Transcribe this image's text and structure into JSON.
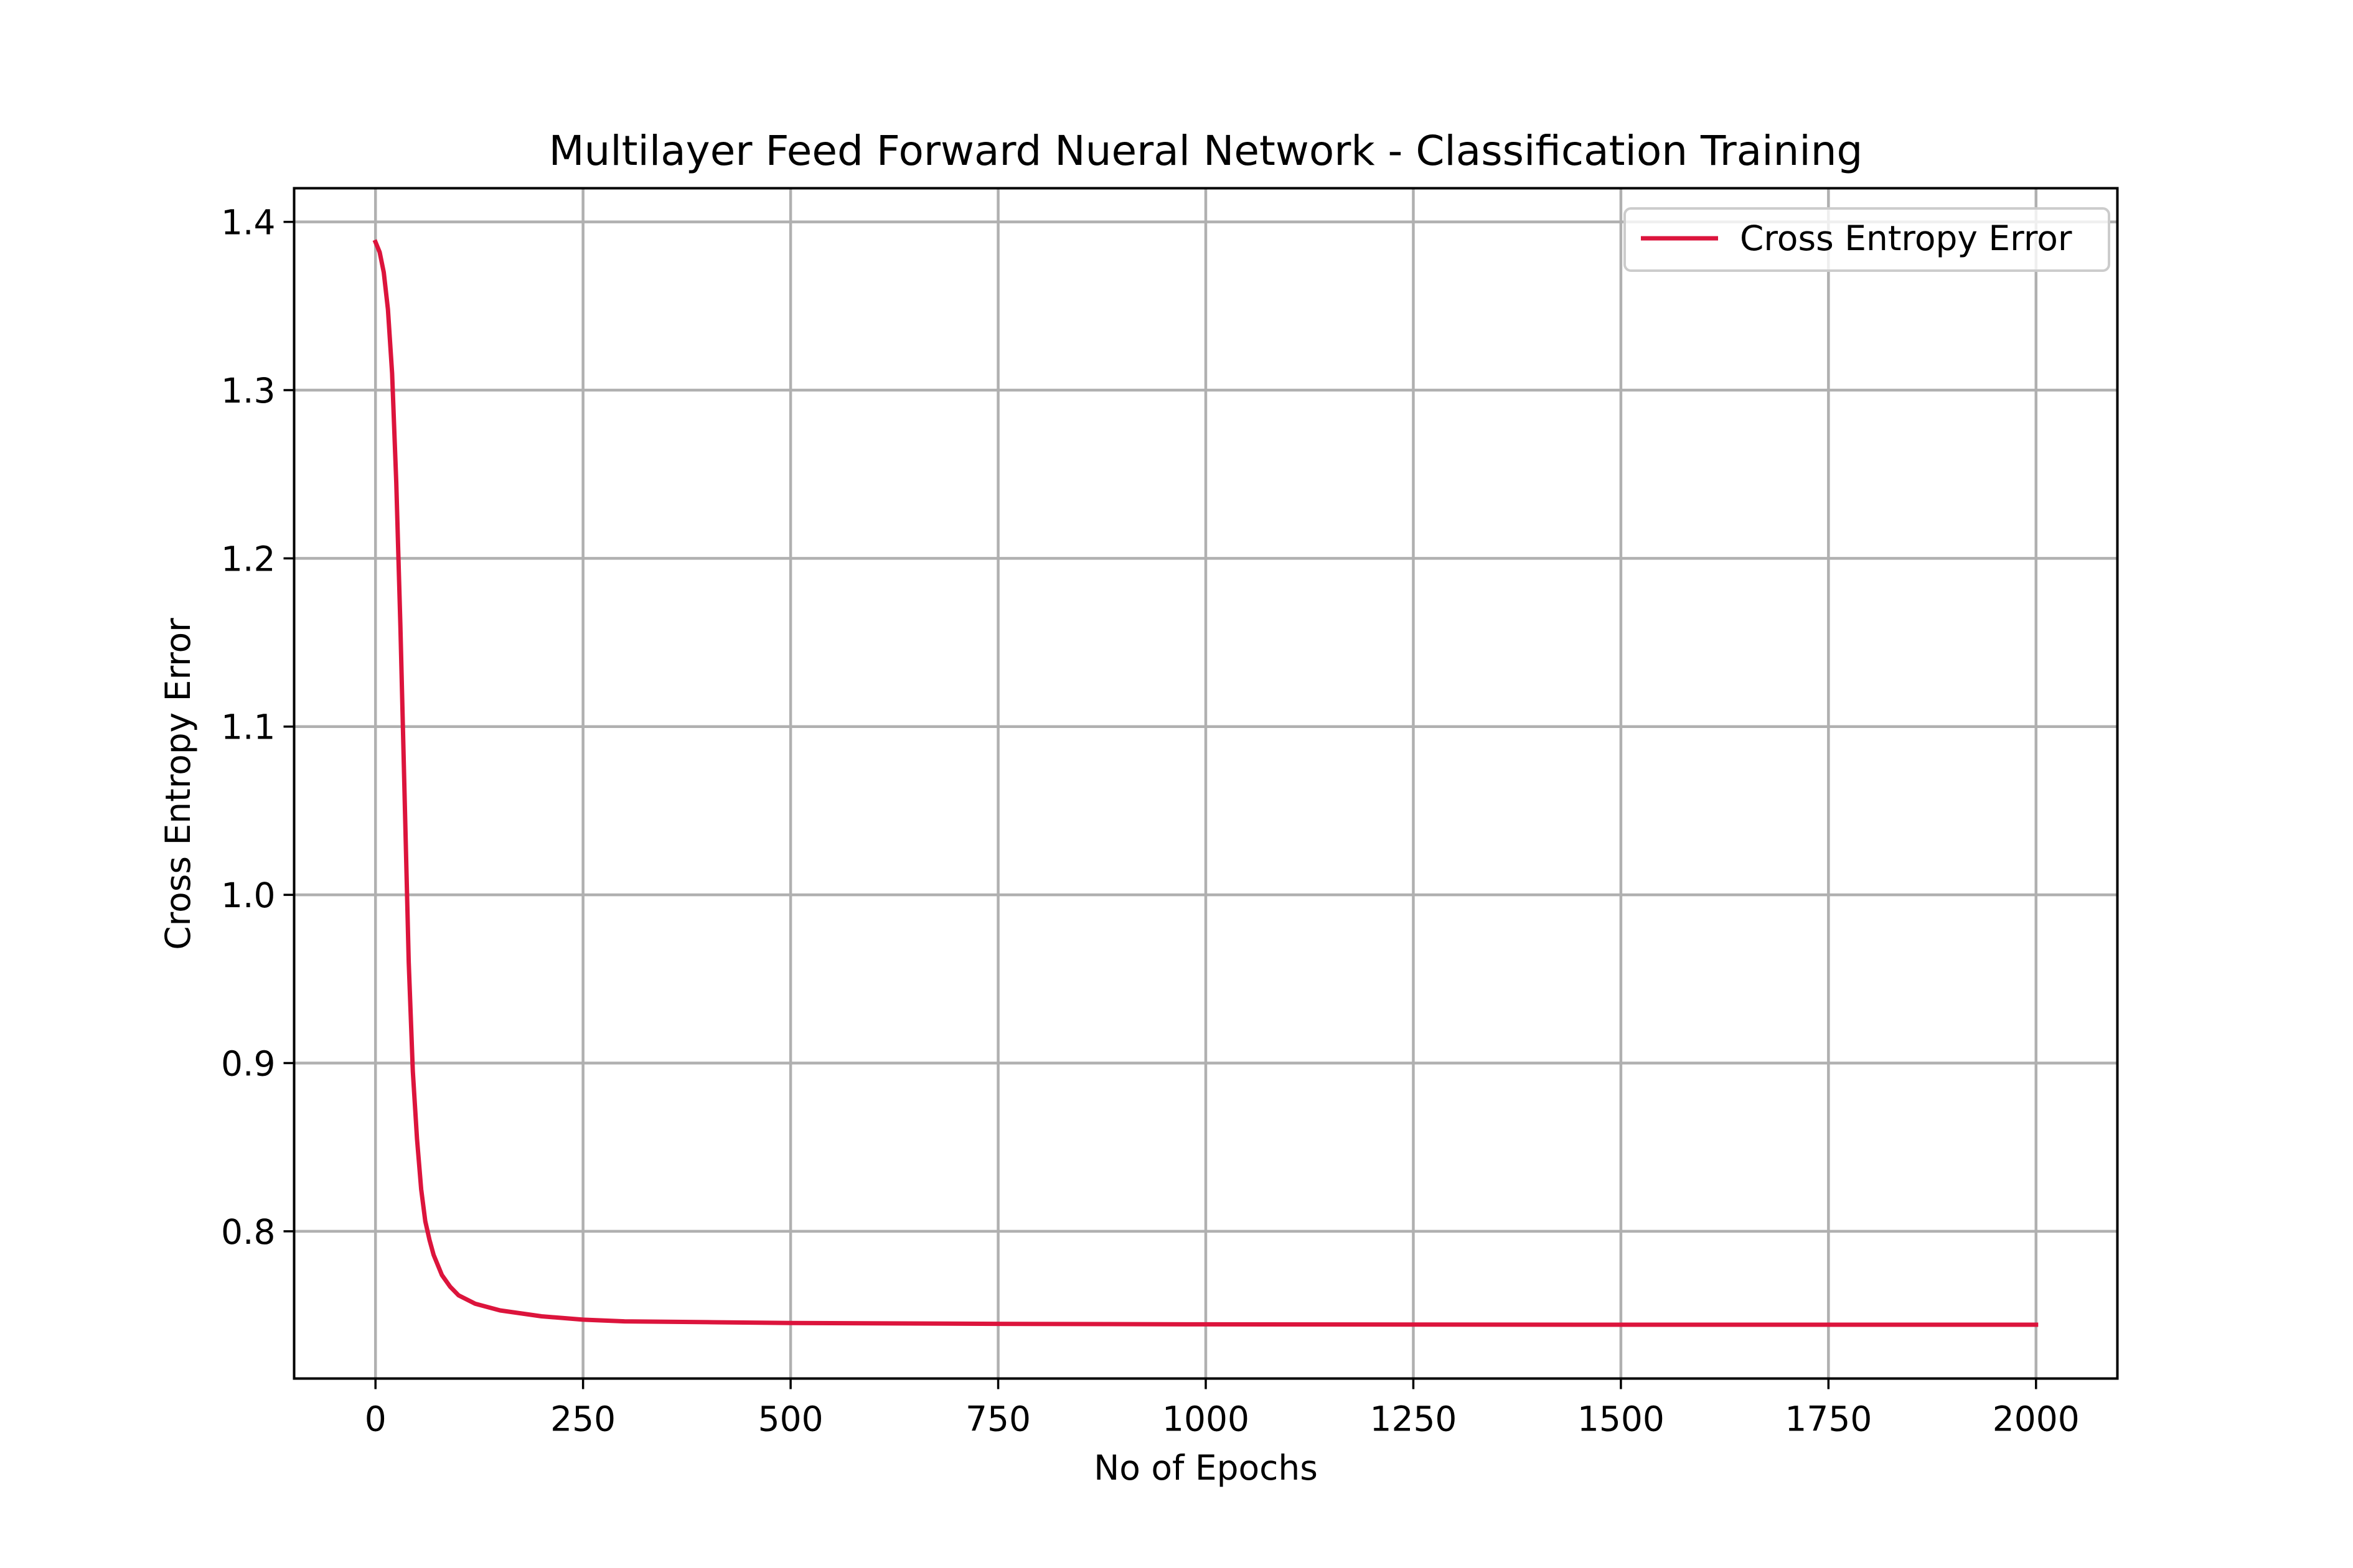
{
  "chart_data": {
    "type": "line",
    "title": "Multilayer Feed Forward Nueral Network - Classification Training",
    "xlabel": "No of Epochs",
    "ylabel": "Cross Entropy Error",
    "xlim": [
      -98,
      2098
    ],
    "ylim": [
      0.7125,
      1.42
    ],
    "x_ticks": [
      0,
      250,
      500,
      750,
      1000,
      1250,
      1500,
      1750,
      2000
    ],
    "x_tick_labels": [
      "0",
      "250",
      "500",
      "750",
      "1000",
      "1250",
      "1500",
      "1750",
      "2000"
    ],
    "y_ticks": [
      0.8,
      0.9,
      1.0,
      1.1,
      1.2,
      1.3,
      1.4
    ],
    "y_tick_labels": [
      "0.8",
      "0.9",
      "1.0",
      "1.1",
      "1.2",
      "1.3",
      "1.4"
    ],
    "grid": true,
    "legend": {
      "position": "top-right",
      "entries": [
        "Cross Entropy Error"
      ]
    },
    "series": [
      {
        "name": "Cross Entropy Error",
        "color": "#dc143c",
        "points": [
          [
            0,
            1.388
          ],
          [
            5,
            1.382
          ],
          [
            10,
            1.37
          ],
          [
            15,
            1.348
          ],
          [
            20,
            1.31
          ],
          [
            25,
            1.245
          ],
          [
            30,
            1.16
          ],
          [
            35,
            1.06
          ],
          [
            40,
            0.96
          ],
          [
            45,
            0.895
          ],
          [
            50,
            0.855
          ],
          [
            55,
            0.825
          ],
          [
            60,
            0.806
          ],
          [
            65,
            0.795
          ],
          [
            70,
            0.786
          ],
          [
            80,
            0.774
          ],
          [
            90,
            0.767
          ],
          [
            100,
            0.762
          ],
          [
            120,
            0.757
          ],
          [
            150,
            0.753
          ],
          [
            200,
            0.7495
          ],
          [
            250,
            0.7475
          ],
          [
            300,
            0.7465
          ],
          [
            400,
            0.746
          ],
          [
            500,
            0.7455
          ],
          [
            750,
            0.745
          ],
          [
            1000,
            0.7447
          ],
          [
            1250,
            0.7446
          ],
          [
            1500,
            0.7445
          ],
          [
            1750,
            0.7445
          ],
          [
            2000,
            0.7445
          ]
        ]
      }
    ]
  }
}
